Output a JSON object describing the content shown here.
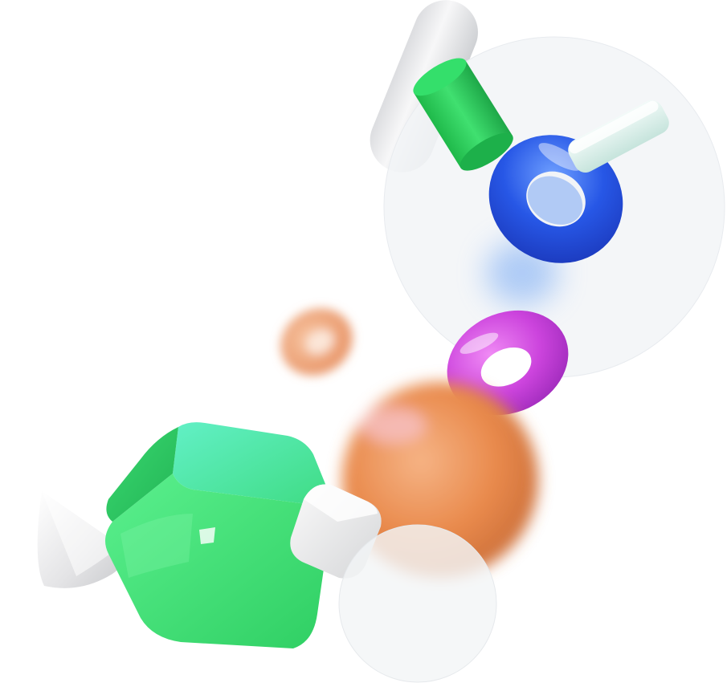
{
  "scene": {
    "background": "#ffffff",
    "objects": [
      {
        "name": "white-capsule",
        "color": "#ecedef"
      },
      {
        "name": "green-cylinder",
        "color": "#2fd45f"
      },
      {
        "name": "glass-disc-large",
        "color": "#f2f4f7"
      },
      {
        "name": "blue-torus",
        "color": "#1f4fe0"
      },
      {
        "name": "mint-bar",
        "color": "#dff2ee"
      },
      {
        "name": "pink-torus",
        "color": "#c23ad8"
      },
      {
        "name": "peach-torus-blurred",
        "color": "#f0a070"
      },
      {
        "name": "orange-sphere-blurred",
        "color": "#e8874a"
      },
      {
        "name": "green-cube",
        "color": "#3ee07a"
      },
      {
        "name": "white-cone",
        "color": "#ececec"
      },
      {
        "name": "white-cube",
        "color": "#eeeeee"
      },
      {
        "name": "glass-disc-small",
        "color": "#f3f5f7"
      }
    ]
  }
}
